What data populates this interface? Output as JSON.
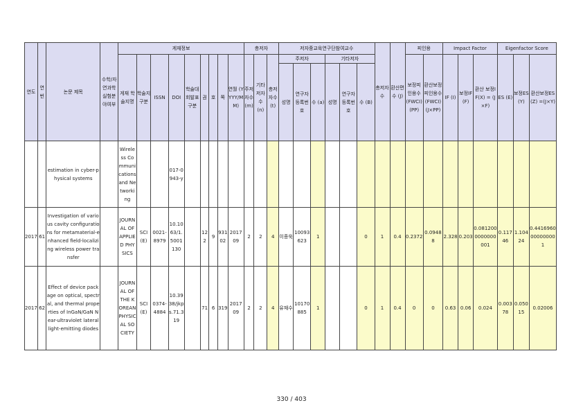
{
  "groups": {
    "pub": "게재정보",
    "authors": "총저자",
    "inst": "저자중교육연구단참여교수",
    "main": "주저자",
    "other": "기타저자",
    "cite": "피인용",
    "if": "Impact Factor",
    "ef": "Eigenfactor Score"
  },
  "headers": {
    "year": "연도",
    "no": "연번",
    "title": "논문 제목",
    "math": "수학/자연과학실험분야여부",
    "journal": "게재 학술지명",
    "jclass": "학술지 구분",
    "issn": "ISSN",
    "doi": "DOI",
    "univ": "학술대회발표구분",
    "vol": "권",
    "issue": "호",
    "page": "쪽",
    "date": "연월 (YYYY/MM)",
    "n_main": "주저자수 (m)",
    "n_other": "기타저자수 (n)",
    "n_total": "총저자수 (t)",
    "main_name": "성명",
    "main_reg": "연구자등록번호",
    "main_cnt": "수 (a)",
    "other_name": "성명",
    "other_reg": "연구자등록번호",
    "other_cnt": "수 (B)",
    "total": "총저자수",
    "conv": "환산편수 (J)",
    "fwci": "보정피인용수 (FWCI) (PP)",
    "fwci_conv": "환산보정피인용수 (FWCI) (J×PP)",
    "if": "IF (I)",
    "if_corr": "보정IF (F)",
    "if_conv": "환산 보정IF(X) = (J×F)",
    "es": "ES (E)",
    "es_corr": "보정ES (Y)",
    "es_conv": "환산보정ES(Z) =(J×Y)"
  },
  "rows": [
    {
      "year": "",
      "no": "",
      "title": "estimation in cyber-physical systems",
      "math": "",
      "journal": "Wireless Communications and Networking",
      "jclass": "",
      "issn": "",
      "doi": "017-0943-y",
      "univ": "",
      "vol": "",
      "issue": "",
      "page": "",
      "date": "",
      "n_main": "",
      "n_other": "",
      "n_total": "",
      "main_name": "",
      "main_reg": "",
      "main_cnt": "",
      "other_name": "",
      "other_reg": "",
      "other_cnt": "",
      "total": "",
      "conv": "",
      "fwci": "",
      "fwci_conv": "",
      "if": "",
      "if_corr": "",
      "if_conv": "",
      "es": "",
      "es_corr": "",
      "es_conv": ""
    },
    {
      "year": "2017",
      "no": "61",
      "title": "Investigation of various cavity configurations for metamaterial-enhanced field-localizing wireless power transfer",
      "math": "",
      "journal": "JOURNAL OF APPLIED PHYSICS",
      "jclass": "SCI(E)",
      "issn": "0021-8979",
      "doi": "10.1063/1.5001130",
      "univ": "",
      "vol": "122",
      "issue": "9",
      "page": "93102",
      "date": "2017 09",
      "n_main": "2",
      "n_other": "2",
      "n_total": "4",
      "main_name": "이종욱",
      "main_reg": "10093623",
      "main_cnt": "1",
      "other_name": "",
      "other_reg": "",
      "other_cnt": "0",
      "total": "1",
      "conv": "0.4",
      "fwci": "0.2372",
      "fwci_conv": "0.09488",
      "if": "2.328",
      "if_corr": "0.203",
      "if_conv": "0.0812000000000001",
      "es": "0.11746",
      "es_corr": "1.10424",
      "es_conv": "0.4416960000000001"
    },
    {
      "year": "2017",
      "no": "62",
      "title": "Effect of device package on optical, spectral, and thermal properties of InGaN/GaN Near-ultraviolet lateral light-emitting diodes",
      "math": "",
      "journal": "JOURNAL OF THE KOREAN PHYSICAL SOCIETY",
      "jclass": "SCI(E)",
      "issn": "0374-4884",
      "doi": "10.3938/jkps.71.319",
      "univ": "",
      "vol": "71",
      "issue": "6",
      "page": "319",
      "date": "2017 09",
      "n_main": "2",
      "n_other": "2",
      "n_total": "4",
      "main_name": "유재수",
      "main_reg": "10170885",
      "main_cnt": "1",
      "other_name": "",
      "other_reg": "",
      "other_cnt": "0",
      "total": "1",
      "conv": "0.4",
      "fwci": "0",
      "fwci_conv": "0",
      "if": "0.63",
      "if_corr": "0.06",
      "if_conv": "0.024",
      "es": "0.00378",
      "es_corr": "0.05015",
      "es_conv": "0.02006"
    }
  ],
  "footer": {
    "page": "330 / 403"
  }
}
